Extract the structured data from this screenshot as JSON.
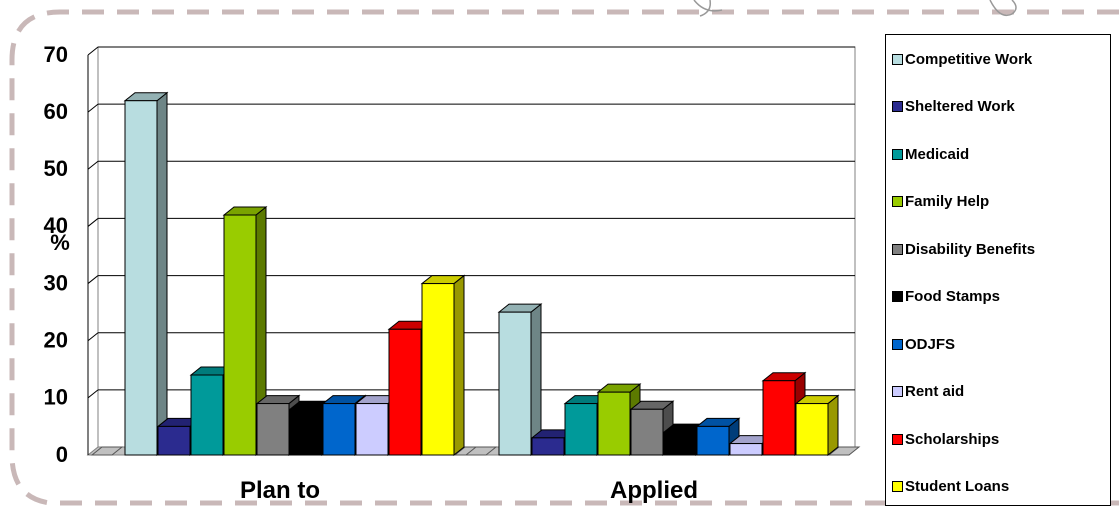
{
  "chart_data": {
    "type": "bar",
    "title": "",
    "xlabel": "",
    "ylabel": "%",
    "ylim": [
      0,
      70
    ],
    "yticks": [
      "0",
      "10",
      "20",
      "30",
      "40",
      "50",
      "60",
      "70"
    ],
    "grid": true,
    "legend_position": "right",
    "categories": [
      "Plan to",
      "Applied"
    ],
    "series": [
      {
        "name": "Competitive Work",
        "color": "#b8dde0",
        "values": [
          62,
          25
        ]
      },
      {
        "name": "Sheltered Work",
        "color": "#2b2b8f",
        "values": [
          5,
          3
        ]
      },
      {
        "name": "Medicaid",
        "color": "#009a9a",
        "values": [
          14,
          9
        ]
      },
      {
        "name": "Family Help",
        "color": "#99cc00",
        "values": [
          42,
          11
        ]
      },
      {
        "name": "Disability Benefits",
        "color": "#808080",
        "values": [
          9,
          8
        ]
      },
      {
        "name": "Food Stamps",
        "color": "#000000",
        "values": [
          8,
          4
        ]
      },
      {
        "name": "ODJFS",
        "color": "#0066cc",
        "values": [
          9,
          5
        ]
      },
      {
        "name": "Rent aid",
        "color": "#ccccff",
        "values": [
          9,
          2
        ]
      },
      {
        "name": "Scholarships",
        "color": "#ff0000",
        "values": [
          22,
          13
        ]
      },
      {
        "name": "Student Loans",
        "color": "#ffff00",
        "values": [
          30,
          9
        ]
      }
    ]
  }
}
